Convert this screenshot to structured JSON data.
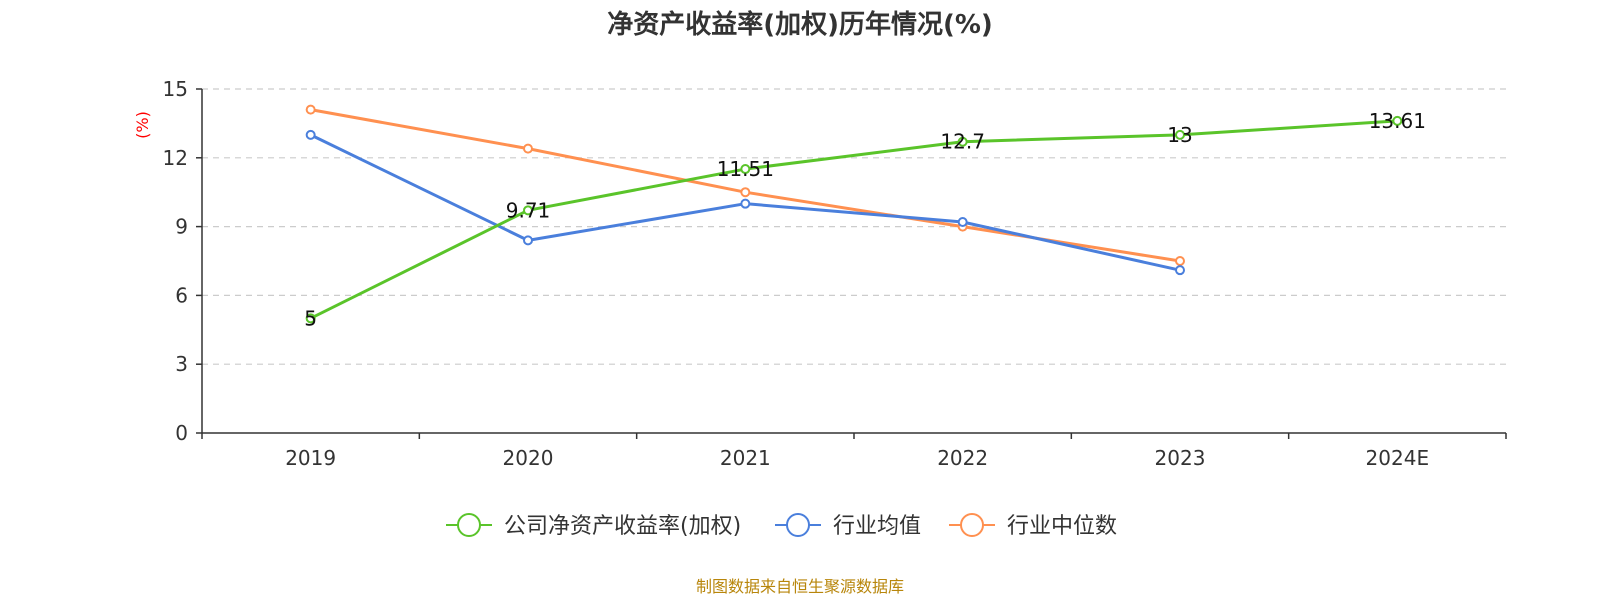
{
  "chart_data": {
    "type": "line",
    "title": "净资产收益率(加权)历年情况(%)",
    "ylabel": "(%)",
    "xlabel": "",
    "categories": [
      "2019",
      "2020",
      "2021",
      "2022",
      "2023",
      "2024E"
    ],
    "ylim": [
      0,
      15
    ],
    "yticks": [
      0,
      3,
      6,
      9,
      12,
      15
    ],
    "grid": true,
    "legend_position": "bottom",
    "series": [
      {
        "name": "公司净资产收益率(加权)",
        "color": "#5ac42a",
        "values": [
          5,
          9.71,
          11.51,
          12.7,
          13,
          13.61
        ],
        "labels": [
          "5",
          "9.71",
          "11.51",
          "12.7",
          "13",
          "13.61"
        ]
      },
      {
        "name": "行业均值",
        "color": "#4a7fdc",
        "values": [
          13.0,
          8.4,
          10.0,
          9.2,
          7.1,
          null
        ]
      },
      {
        "name": "行业中位数",
        "color": "#ff9050",
        "values": [
          14.1,
          12.4,
          10.5,
          9.0,
          7.5,
          null
        ]
      }
    ]
  },
  "footer": {
    "source": "制图数据来自恒生聚源数据库"
  }
}
